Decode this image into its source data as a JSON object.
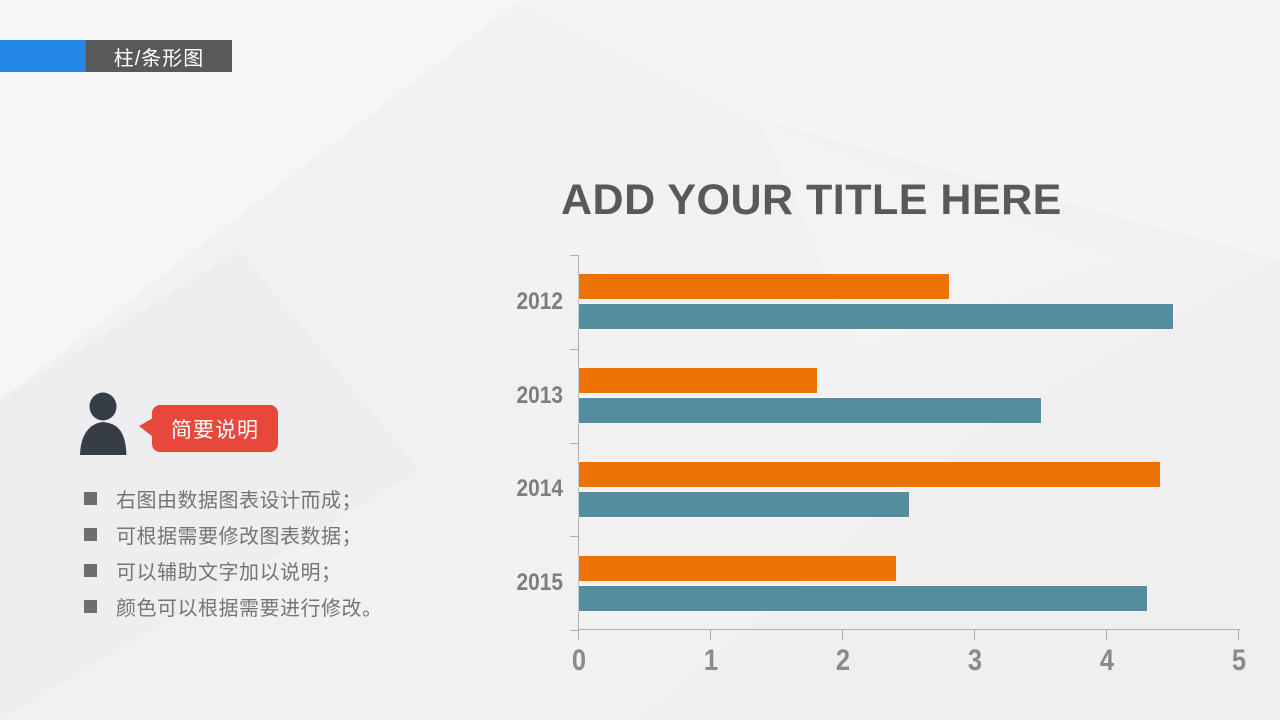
{
  "header": {
    "label": "柱/条形图"
  },
  "title": "ADD YOUR TITLE HERE",
  "callout": {
    "label": "简要说明"
  },
  "notes": [
    "右图由数据图表设计而成；",
    "可根据需要修改图表数据；",
    "可以辅助文字加以说明；",
    "颜色可以根据需要进行修改。"
  ],
  "colors": {
    "accent_blue": "#2289E8",
    "header_box": "#595959",
    "callout_red": "#E8483C",
    "title_gray": "#595959",
    "orange": "#EC7303",
    "teal": "#548D9D",
    "axis_line": "#AFAFAF",
    "axis_label": "#8A8A8A",
    "year_label": "#7E7E7E",
    "note_text": "#757575",
    "bullet": "#6E6E6E",
    "person_icon": "#363D44"
  },
  "chart_data": {
    "type": "bar",
    "orientation": "horizontal",
    "title": "ADD YOUR TITLE HERE",
    "categories": [
      "2012",
      "2013",
      "2014",
      "2015"
    ],
    "series": [
      {
        "name": "orange-series",
        "color": "#EC7303",
        "values": [
          2.8,
          1.8,
          4.4,
          2.4
        ]
      },
      {
        "name": "teal-series",
        "color": "#548D9D",
        "values": [
          4.5,
          3.5,
          2.5,
          4.3
        ]
      }
    ],
    "xlim": [
      0,
      5
    ],
    "x_ticks": [
      0,
      1,
      2,
      3,
      4,
      5
    ],
    "grid": false,
    "legend": "none",
    "bar_order_note": "orange bar drawn above teal bar within each year group"
  }
}
